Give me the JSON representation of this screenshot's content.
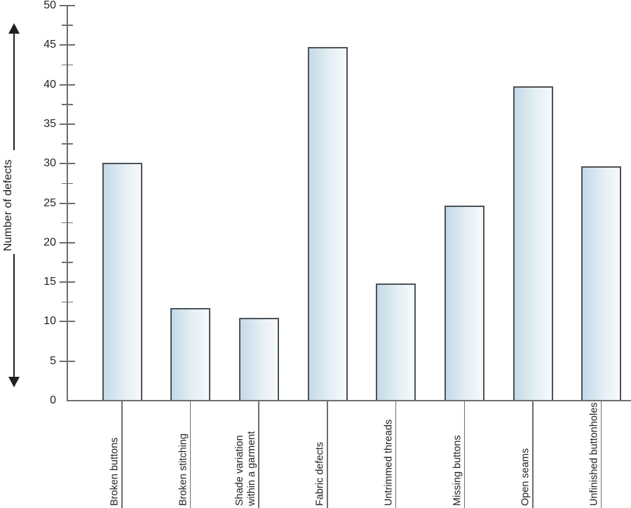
{
  "chart_data": {
    "type": "bar",
    "title": "",
    "ylabel": "Number of defects",
    "xlabel": "",
    "categories": [
      "Broken buttons",
      "Broken stitching",
      "Shade variation\nwithin a garment",
      "Fabric defects",
      "Untrimmed threads",
      "Missing buttons",
      "Open seams",
      "Unfinished buttonholes"
    ],
    "values": [
      30.1,
      11.7,
      10.5,
      44.8,
      14.8,
      24.7,
      39.8,
      29.7
    ],
    "ylim": [
      0,
      50
    ],
    "ytick_values": [
      0,
      5,
      10,
      15,
      20,
      25,
      30,
      35,
      40,
      45,
      50
    ],
    "ytick_labels": [
      "0",
      "5",
      "10",
      "15",
      "20",
      "25",
      "30",
      "35",
      "40",
      "45",
      "50"
    ],
    "minor_tick_values": [
      12.5,
      17.5,
      22.5,
      27.5,
      32.5,
      37.5,
      42.5,
      47.5
    ],
    "grid": false,
    "legend_position": "none",
    "icons": {
      "y_axis_arrow_up": "arrow-up-icon",
      "y_axis_arrow_down": "arrow-down-icon"
    },
    "colors": {
      "background": "#ffffff",
      "axis": "#6d6e71",
      "bar_border": "#4e5256",
      "bar_gradient_start": "#c3dae7",
      "bar_gradient_end": "#f6fafc",
      "text": "#231f20"
    }
  }
}
